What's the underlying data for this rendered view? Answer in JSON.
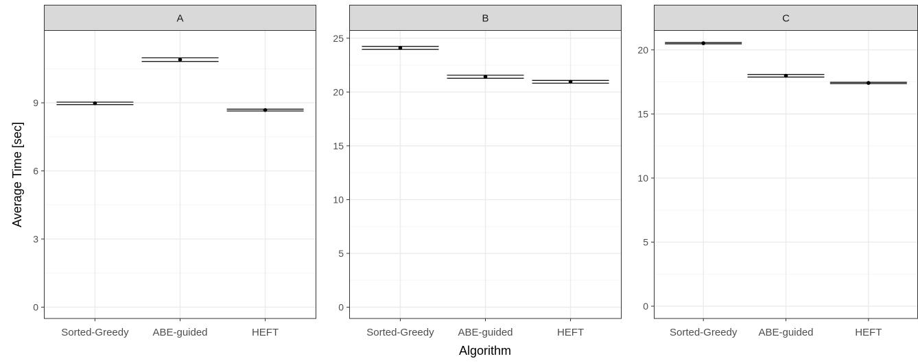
{
  "chart_data": [
    {
      "type": "errorbar",
      "facet": "A",
      "categories": [
        "Sorted-Greedy",
        "ABE-guided",
        "HEFT"
      ],
      "values": [
        8.98,
        10.9,
        8.68
      ],
      "errors": [
        [
          8.92,
          9.03
        ],
        [
          10.82,
          10.98
        ],
        [
          8.64,
          8.72
        ]
      ],
      "yticks": [
        0,
        3,
        6,
        9
      ],
      "ylim": [
        -0.5,
        12.2
      ],
      "grid": true
    },
    {
      "type": "errorbar",
      "facet": "B",
      "categories": [
        "Sorted-Greedy",
        "ABE-guided",
        "HEFT"
      ],
      "values": [
        24.1,
        21.42,
        20.95
      ],
      "errors": [
        [
          23.96,
          24.24
        ],
        [
          21.28,
          21.56
        ],
        [
          20.82,
          21.08
        ]
      ],
      "yticks": [
        0,
        5,
        10,
        15,
        20,
        25
      ],
      "ylim": [
        -1.05,
        25.75
      ],
      "grid": true
    },
    {
      "type": "errorbar",
      "facet": "C",
      "categories": [
        "Sorted-Greedy",
        "ABE-guided",
        "HEFT"
      ],
      "values": [
        20.52,
        17.98,
        17.42
      ],
      "errors": [
        [
          20.47,
          20.57
        ],
        [
          17.88,
          18.08
        ],
        [
          17.37,
          17.47
        ]
      ],
      "yticks": [
        0,
        5,
        10,
        15,
        20
      ],
      "ylim": [
        -0.96,
        21.54
      ],
      "grid": true
    }
  ],
  "axes": {
    "xlabel": "Algorithm",
    "ylabel": "Average Time [sec]"
  },
  "colors": {
    "strip_bg": "#d9d9d9",
    "panel_border": "#333333",
    "grid_major": "#ebebeb",
    "grid_minor": "#f5f5f5",
    "mark": "#000000",
    "tick_text": "#4d4d4d"
  }
}
